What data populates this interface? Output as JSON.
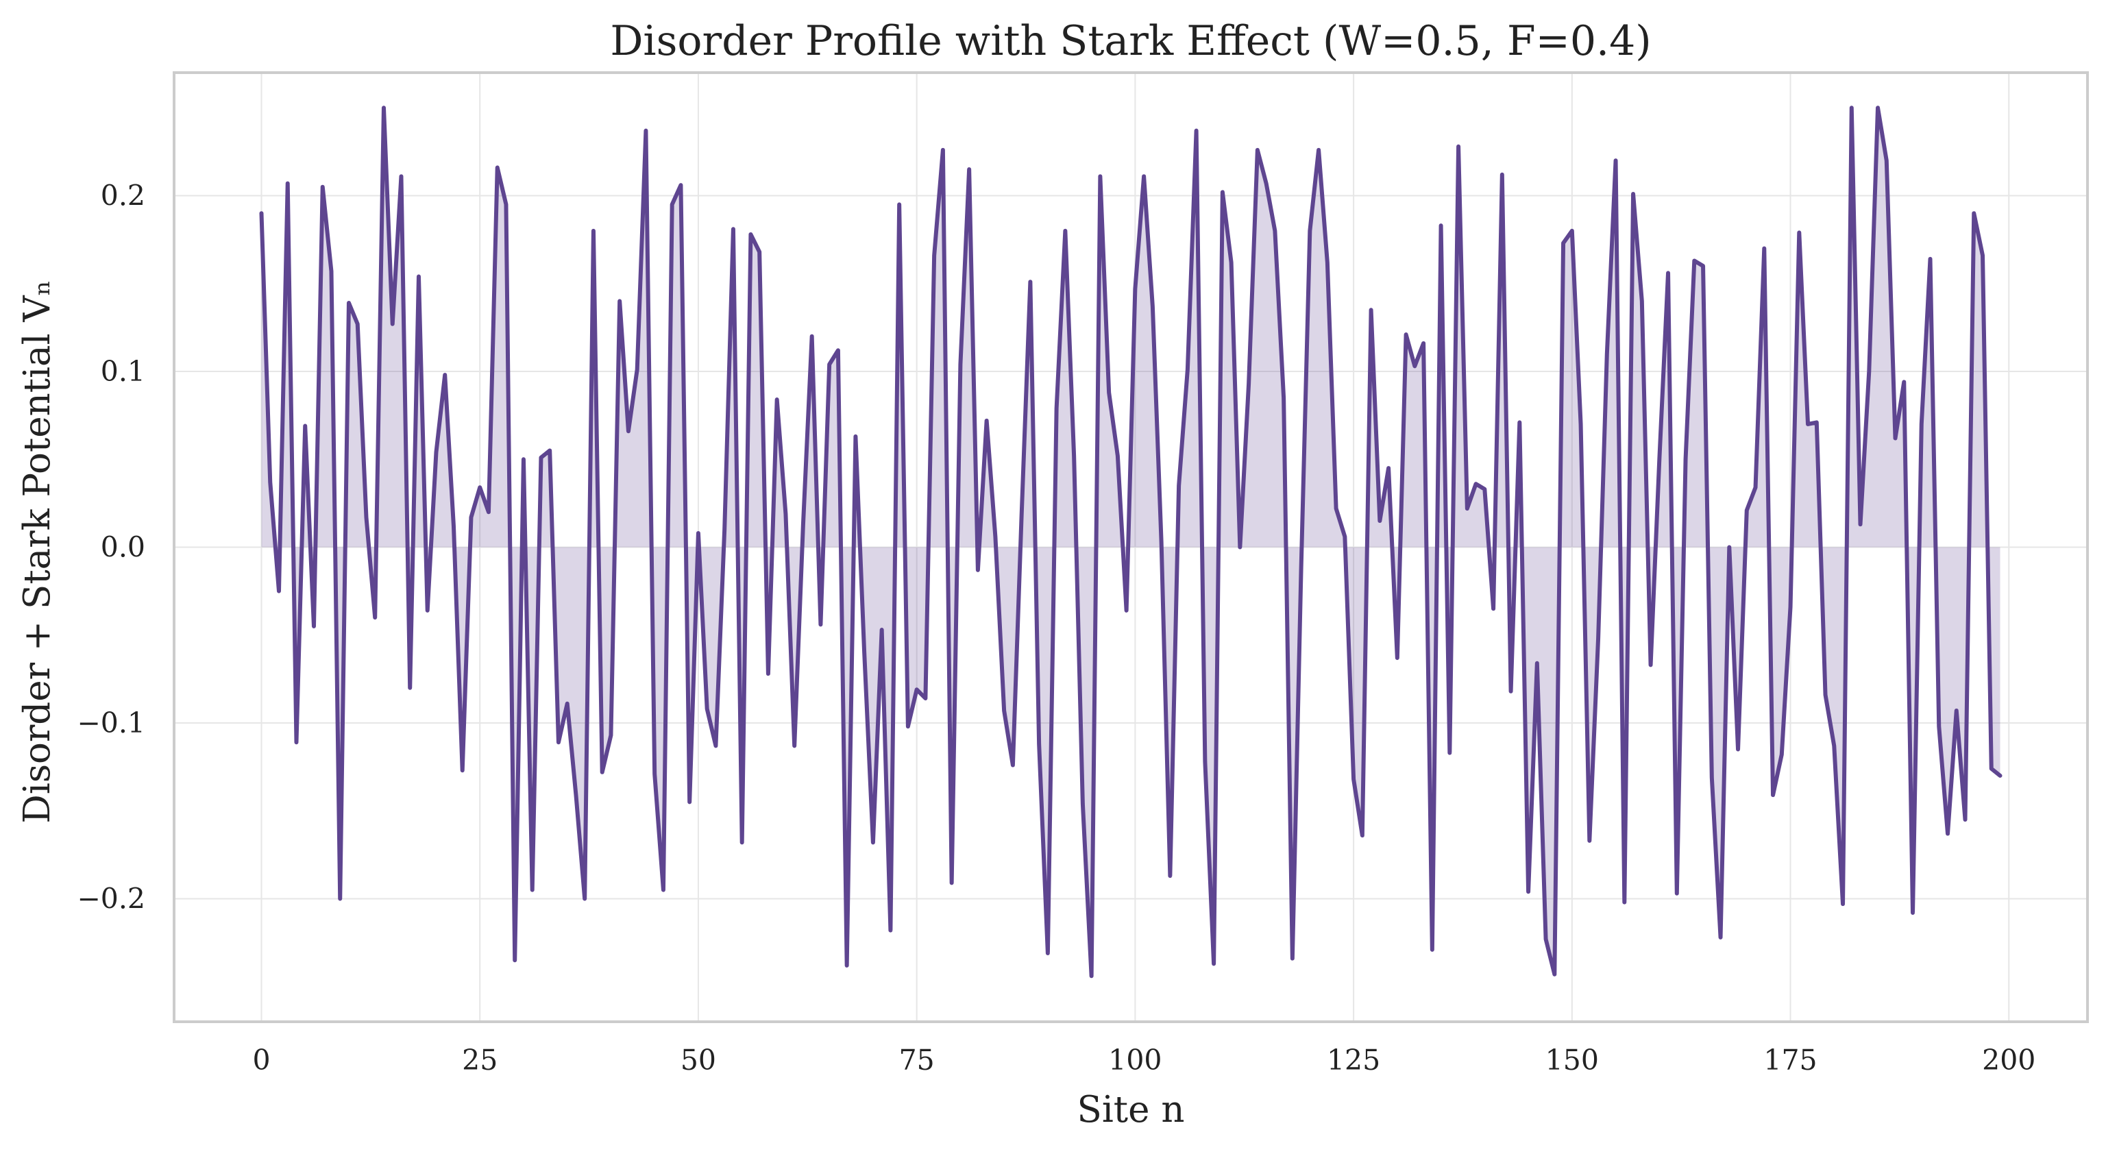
{
  "chart_data": {
    "type": "area",
    "title": "Disorder Profile with Stark Effect (W=0.5, F=0.4)",
    "xlabel": "Site n",
    "ylabel": "Disorder + Stark Potential Vₙ",
    "xlim": [
      -10,
      209
    ],
    "ylim": [
      -0.27,
      0.27
    ],
    "x_ticks": [
      0,
      25,
      50,
      75,
      100,
      125,
      150,
      175,
      200
    ],
    "y_ticks": [
      -0.2,
      -0.1,
      0.0,
      0.1,
      0.2
    ],
    "x_tick_labels": [
      "0",
      "25",
      "50",
      "75",
      "100",
      "125",
      "150",
      "175",
      "200"
    ],
    "y_tick_labels": [
      "−0.2",
      "−0.1",
      "0.0",
      "0.1",
      "0.2"
    ],
    "grid": true,
    "legend": "none",
    "series": [
      {
        "x_start": 0,
        "x_step": 1,
        "values": [
          0.19,
          0.037,
          -0.025,
          0.207,
          -0.111,
          0.069,
          -0.045,
          0.205,
          0.157,
          -0.2,
          0.139,
          0.127,
          0.017,
          -0.04,
          0.25,
          0.127,
          0.211,
          -0.08,
          0.154,
          -0.036,
          0.054,
          0.098,
          0.012,
          -0.127,
          0.017,
          0.034,
          0.02,
          0.216,
          0.195,
          -0.235,
          0.05,
          -0.195,
          0.051,
          0.055,
          -0.111,
          -0.089,
          -0.141,
          -0.2,
          0.18,
          -0.128,
          -0.107,
          0.14,
          0.066,
          0.101,
          0.237,
          -0.129,
          -0.195,
          0.195,
          0.206,
          -0.145,
          0.008,
          -0.092,
          -0.113,
          0.01,
          0.181,
          -0.168,
          0.178,
          0.168,
          -0.072,
          0.084,
          0.019,
          -0.113,
          0.013,
          0.12,
          -0.044,
          0.104,
          0.112,
          -0.238,
          0.063,
          -0.06,
          -0.168,
          -0.047,
          -0.218,
          0.195,
          -0.102,
          -0.081,
          -0.086,
          0.166,
          0.226,
          -0.191,
          0.104,
          0.215,
          -0.013,
          0.072,
          0.006,
          -0.093,
          -0.124,
          0.018,
          0.151,
          -0.112,
          -0.231,
          0.079,
          0.18,
          0.052,
          -0.146,
          -0.244,
          0.211,
          0.088,
          0.052,
          -0.036,
          0.147,
          0.211,
          0.137,
          0.003,
          -0.187,
          0.035,
          0.101,
          0.237,
          -0.122,
          -0.237,
          0.202,
          0.162,
          0.0,
          0.093,
          0.226,
          0.207,
          0.18,
          0.085,
          -0.234,
          -0.012,
          0.18,
          0.226,
          0.162,
          0.022,
          0.006,
          -0.132,
          -0.164,
          0.135,
          0.015,
          0.045,
          -0.063,
          0.121,
          0.103,
          0.116,
          -0.229,
          0.183,
          -0.117,
          0.228,
          0.022,
          0.036,
          0.033,
          -0.035,
          0.212,
          -0.082,
          0.071,
          -0.196,
          -0.066,
          -0.223,
          -0.243,
          0.173,
          0.18,
          0.07,
          -0.167,
          -0.052,
          0.11,
          0.22,
          -0.202,
          0.201,
          0.14,
          -0.067,
          0.05,
          0.156,
          -0.197,
          0.05,
          0.163,
          0.16,
          -0.131,
          -0.222,
          0.0,
          -0.115,
          0.021,
          0.034,
          0.17,
          -0.141,
          -0.118,
          -0.034,
          0.179,
          0.07,
          0.071,
          -0.084,
          -0.113,
          -0.203,
          0.25,
          0.013,
          0.1,
          0.25,
          0.22,
          0.062,
          0.094,
          -0.208,
          0.07,
          0.164,
          -0.102,
          -0.163,
          -0.093,
          -0.155,
          0.19,
          0.166,
          -0.126,
          -0.13
        ],
        "color": "#5e4590",
        "fill_color": "#5e4590",
        "fill_to": 0
      }
    ]
  }
}
